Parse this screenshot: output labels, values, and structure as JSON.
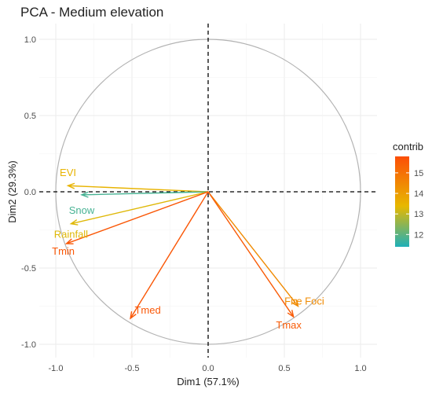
{
  "chart_data": {
    "type": "scatter",
    "title": "PCA - Medium elevation",
    "xlabel": "Dim1 (57.1%)",
    "ylabel": "Dim2 (29.3%)",
    "xlim": [
      -1.0,
      1.0
    ],
    "ylim": [
      -1.0,
      1.0
    ],
    "x_ticks": [
      "-1.0",
      "-0.5",
      "0.0",
      "0.5",
      "1.0"
    ],
    "y_ticks": [
      "-1.0",
      "-0.5",
      "0.0",
      "0.5",
      "1.0"
    ],
    "grid": true,
    "correlation_circle": true,
    "variables": [
      {
        "name": "EVI",
        "x": -0.92,
        "y": 0.04,
        "contrib": 13.5
      },
      {
        "name": "Snow",
        "x": -0.83,
        "y": -0.02,
        "contrib": 11.8
      },
      {
        "name": "Rainfall",
        "x": -0.9,
        "y": -0.21,
        "contrib": 13.3
      },
      {
        "name": "Tmin",
        "x": -0.93,
        "y": -0.34,
        "contrib": 15.6
      },
      {
        "name": "Tmed",
        "x": -0.51,
        "y": -0.83,
        "contrib": 15.6
      },
      {
        "name": "Fire Foci",
        "x": 0.59,
        "y": -0.75,
        "contrib": 14.4
      },
      {
        "name": "Tmax",
        "x": 0.56,
        "y": -0.82,
        "contrib": 15.5
      }
    ],
    "legend": {
      "title": "contrib",
      "position": "right",
      "ticks": [
        "12",
        "13",
        "14",
        "15"
      ],
      "range": [
        11.4,
        15.8
      ],
      "colors": [
        "#1fb0b8",
        "#e7b800",
        "#fc4e07"
      ]
    }
  }
}
